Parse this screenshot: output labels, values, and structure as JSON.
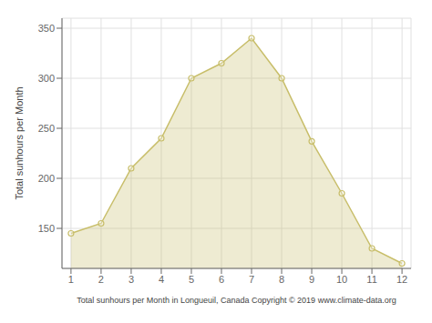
{
  "chart_data": {
    "type": "area",
    "x": [
      1,
      2,
      3,
      4,
      5,
      6,
      7,
      8,
      9,
      10,
      11,
      12
    ],
    "values": [
      145,
      155,
      210,
      240,
      300,
      315,
      340,
      300,
      237,
      185,
      130,
      115
    ],
    "color": "#C8BE6A",
    "marker": "circle",
    "xlabel": "Total sunhours per Month in Longueuil, Canada Copyright © 2019 www.climate-data.org",
    "ylabel": "Total sunhours per Month",
    "xlim": [
      0.7,
      12.3
    ],
    "xticks": [
      1,
      2,
      3,
      4,
      5,
      6,
      7,
      8,
      9,
      10,
      11,
      12
    ],
    "ylim": [
      110,
      360
    ],
    "yticks": [
      150,
      200,
      250,
      300,
      350
    ],
    "grid": true
  }
}
